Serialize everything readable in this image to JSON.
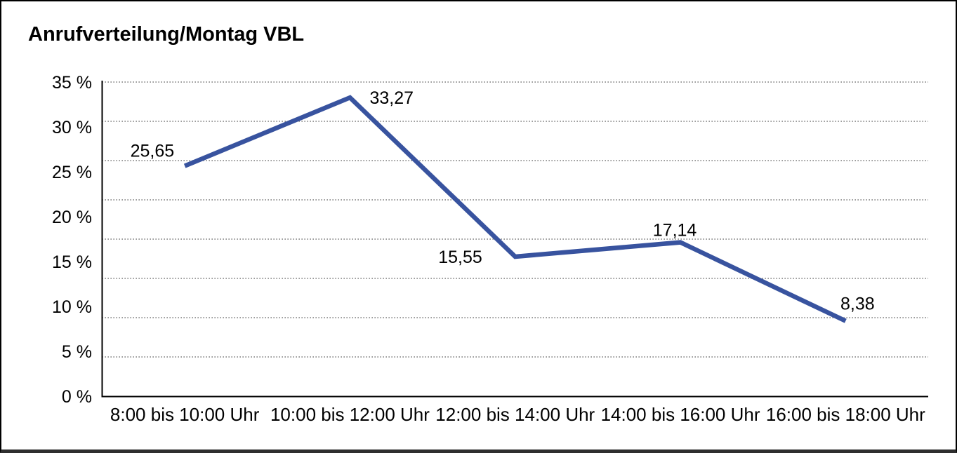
{
  "panel": {
    "background": "#ffffff",
    "border_color": "#000000"
  },
  "chart_data": {
    "type": "line",
    "title": "Anrufverteilung/Montag VBL",
    "categories": [
      "8:00 bis 10:00 Uhr",
      "10:00 bis 12:00 Uhr",
      "12:00 bis 14:00 Uhr",
      "14:00 bis 16:00 Uhr",
      "16:00 bis 18:00 Uhr"
    ],
    "values": [
      25.65,
      33.27,
      15.55,
      17.14,
      8.38
    ],
    "value_labels": [
      "25,65",
      "33,27",
      "15,55",
      "17,14",
      "8,38"
    ],
    "y_ticks": [
      {
        "value": 35,
        "label": "35 %"
      },
      {
        "value": 30,
        "label": "30 %"
      },
      {
        "value": 25,
        "label": "25 %"
      },
      {
        "value": 20,
        "label": "20 %"
      },
      {
        "value": 15,
        "label": "15 %"
      },
      {
        "value": 10,
        "label": "10 %"
      },
      {
        "value": 5,
        "label": "5 %"
      },
      {
        "value": 0,
        "label": "0 %"
      }
    ],
    "ylim": [
      0,
      35
    ],
    "xlabel": "",
    "ylabel": "",
    "legend": "none",
    "grid": {
      "horizontal": true,
      "vertical": false,
      "style": "dotted",
      "gridline_scale_max": 40,
      "gridline_values": [
        40,
        35,
        30,
        25,
        20,
        15,
        10,
        5
      ]
    },
    "line_color": "#38539F",
    "text_color": "#000000",
    "axis_color": "#000000",
    "gridline_color": "#3d3d3d"
  }
}
